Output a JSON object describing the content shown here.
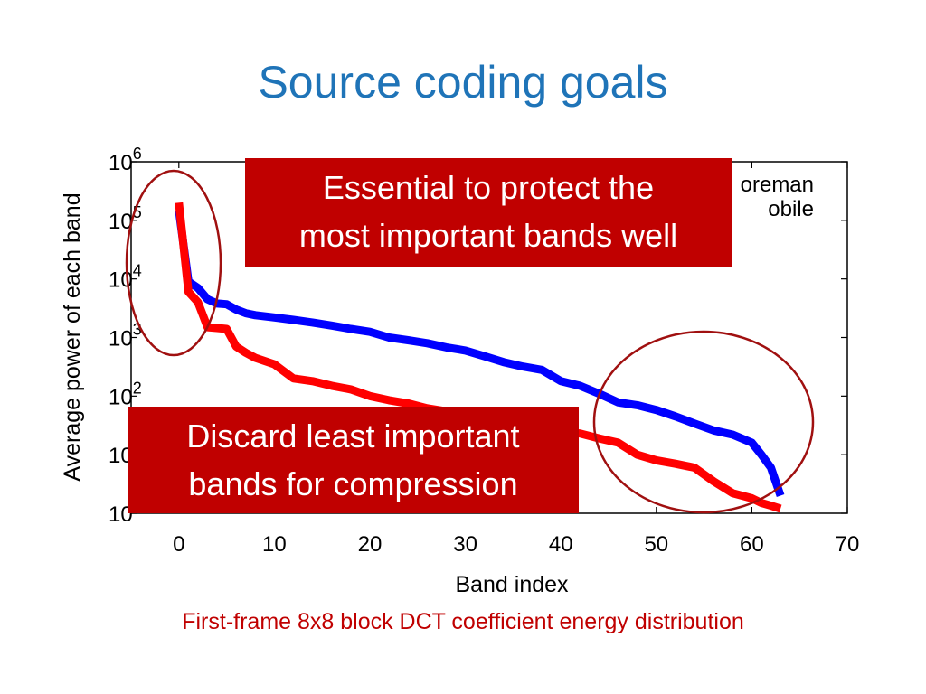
{
  "slide": {
    "title": "Source coding goals",
    "caption": "First-frame 8x8 block DCT coefficient energy distribution"
  },
  "callouts": {
    "top": [
      "Essential to protect the",
      "most important bands well"
    ],
    "bottom": [
      "Discard least important",
      "bands for compression"
    ]
  },
  "colors": {
    "title": "#1f74b8",
    "callout_bg": "#c00000",
    "caption": "#c00000",
    "series_foreman": "#0000ff",
    "series_mobile": "#ff0000",
    "highlight_ellipse": "#a01010"
  },
  "chart_data": {
    "type": "line",
    "xlabel": "Band index",
    "ylabel": "Average power of each band",
    "xlim": [
      -5,
      70
    ],
    "xticks": [
      0,
      10,
      20,
      30,
      40,
      50,
      60,
      70
    ],
    "yscale": "log",
    "ylim_exp": [
      0,
      6
    ],
    "yticks_exp": [
      0,
      1,
      2,
      3,
      4,
      5,
      6
    ],
    "ytick_base": "10",
    "grid": false,
    "legend_position": "top-right",
    "series": [
      {
        "name": "Foreman",
        "legend_visible_text": "oreman",
        "color": "#0000ff",
        "x": [
          0,
          1,
          2,
          3,
          4,
          5,
          6,
          7,
          8,
          10,
          12,
          14,
          16,
          18,
          20,
          22,
          24,
          26,
          28,
          30,
          32,
          34,
          36,
          38,
          40,
          42,
          44,
          46,
          48,
          50,
          52,
          54,
          56,
          58,
          60,
          61,
          62,
          63
        ],
        "y": [
          150000,
          9000,
          7000,
          4500,
          3800,
          3700,
          3000,
          2600,
          2400,
          2200,
          2000,
          1800,
          1600,
          1400,
          1250,
          1000,
          900,
          800,
          680,
          600,
          480,
          380,
          320,
          280,
          180,
          150,
          110,
          78,
          70,
          58,
          45,
          34,
          26,
          22,
          16,
          10,
          6,
          2
        ]
      },
      {
        "name": "Mobile",
        "legend_visible_text": "obile",
        "color": "#ff0000",
        "x": [
          0,
          1,
          2,
          3,
          4,
          5,
          6,
          7,
          8,
          10,
          12,
          14,
          16,
          18,
          20,
          22,
          24,
          26,
          28,
          30,
          32,
          34,
          36,
          38,
          40,
          42,
          44,
          46,
          48,
          50,
          52,
          54,
          56,
          58,
          60,
          61,
          62,
          63
        ],
        "y": [
          200000,
          6000,
          4000,
          1500,
          1450,
          1400,
          700,
          550,
          450,
          350,
          200,
          180,
          150,
          130,
          100,
          85,
          75,
          62,
          55,
          50,
          45,
          40,
          35,
          30,
          25,
          23,
          19,
          16,
          10,
          8,
          7,
          6,
          3.5,
          2.2,
          1.8,
          1.5,
          1.35,
          1.2
        ]
      }
    ]
  }
}
